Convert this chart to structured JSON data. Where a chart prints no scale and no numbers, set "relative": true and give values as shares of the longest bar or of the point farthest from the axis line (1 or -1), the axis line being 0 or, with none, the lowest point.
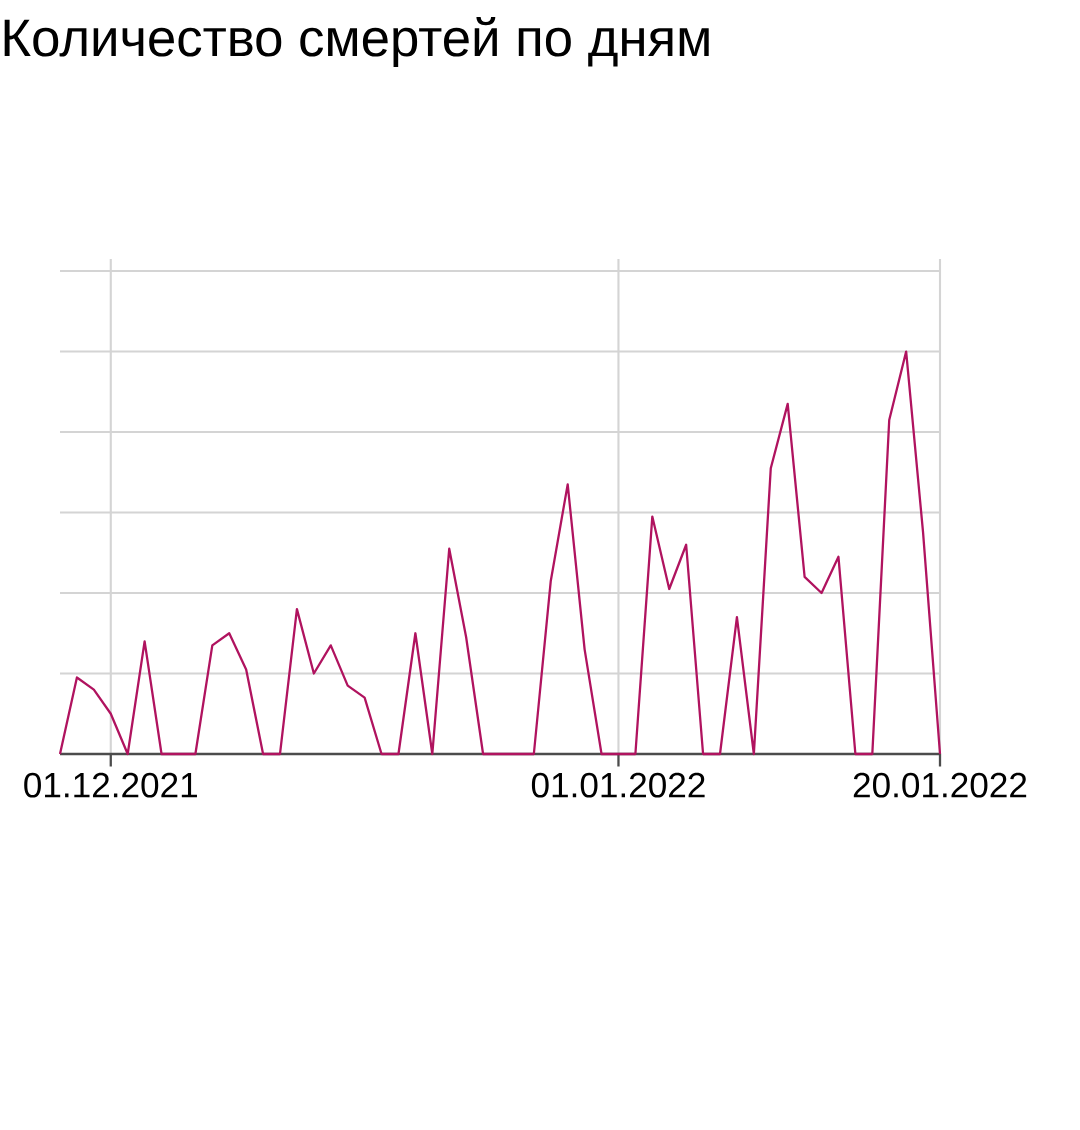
{
  "chart_data": {
    "type": "line",
    "title": "Количество смертей по дням",
    "categories": [
      null,
      null,
      null,
      "01.12.2021",
      null,
      null,
      null,
      null,
      null,
      null,
      null,
      null,
      null,
      null,
      null,
      null,
      null,
      null,
      null,
      null,
      null,
      null,
      null,
      null,
      null,
      null,
      null,
      null,
      null,
      null,
      null,
      null,
      null,
      "01.01.2022",
      null,
      null,
      null,
      null,
      null,
      null,
      null,
      null,
      null,
      null,
      null,
      null,
      null,
      null,
      null,
      null,
      null,
      null,
      "20.01.2022"
    ],
    "values": [
      0,
      0.19,
      0.16,
      0.1,
      0,
      0.28,
      0,
      0,
      0,
      0.27,
      0.3,
      0.21,
      0,
      0,
      0.36,
      0.2,
      0.27,
      0.17,
      0.14,
      0,
      0,
      0.3,
      0,
      0.51,
      0.29,
      0,
      0,
      0,
      0,
      0.43,
      0.67,
      0.26,
      0,
      0,
      0,
      0.59,
      0.41,
      0.52,
      0,
      0,
      0.34,
      0,
      0.71,
      0.87,
      0.44,
      0.4,
      0.49,
      0,
      0,
      0.83,
      1,
      0.55,
      0
    ],
    "color": "#b0135f",
    "relative": true,
    "grid": true
  }
}
